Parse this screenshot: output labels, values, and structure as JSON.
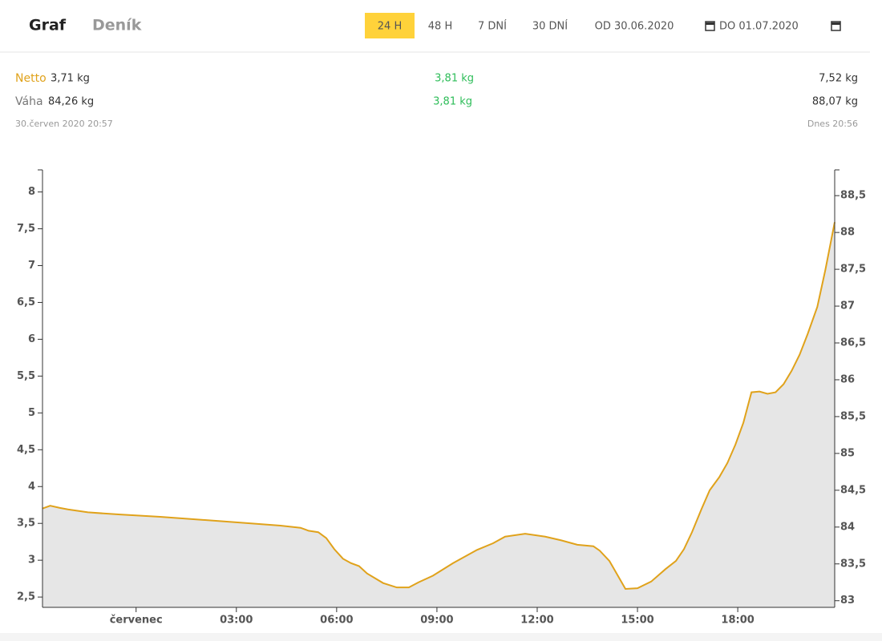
{
  "header": {
    "tabs": [
      "Graf",
      "Deník"
    ],
    "filters": [
      "24 H",
      "48 H",
      "7 DNÍ",
      "30 DNÍ",
      "OD 30.06.2020",
      "DO 01.07.2020"
    ]
  },
  "stats": {
    "rows": [
      {
        "label": "Netto",
        "start": "3,71 kg",
        "change": "3,81 kg",
        "end": "7,52 kg"
      },
      {
        "label": "Váha",
        "start": "84,26 kg",
        "change": "3,81 kg",
        "end": "88,07 kg"
      }
    ],
    "start_time": "30.červen 2020 20:57",
    "end_time": "Dnes 20:56"
  },
  "chart_data": {
    "type": "area",
    "x": [
      -2.81,
      -2.57,
      -2.28,
      -2.04,
      -1.44,
      -0.48,
      0.72,
      1.92,
      3.12,
      4.32,
      4.92,
      5.16,
      5.45,
      5.69,
      5.93,
      6.19,
      6.43,
      6.67,
      6.91,
      7.39,
      7.8,
      8.16,
      8.45,
      8.88,
      9.48,
      10.2,
      10.68,
      11.04,
      11.64,
      12.24,
      12.72,
      13.2,
      13.68,
      13.87,
      14.16,
      14.64,
      15.0,
      15.41,
      15.84,
      16.15,
      16.39,
      16.63,
      16.92,
      17.16,
      17.45,
      17.69,
      17.93,
      18.17,
      18.41,
      18.65,
      18.89,
      19.13,
      19.37,
      19.61,
      19.85,
      20.09,
      20.38,
      20.62,
      20.9
    ],
    "series": [
      {
        "color": "#e0a21b",
        "values": [
          3.7,
          3.74,
          3.71,
          3.69,
          3.65,
          3.62,
          3.59,
          3.55,
          3.51,
          3.47,
          3.44,
          3.4,
          3.38,
          3.3,
          3.15,
          3.02,
          2.96,
          2.92,
          2.82,
          2.69,
          2.63,
          2.63,
          2.7,
          2.79,
          2.96,
          3.14,
          3.23,
          3.32,
          3.36,
          3.32,
          3.27,
          3.21,
          3.19,
          3.13,
          2.99,
          2.61,
          2.62,
          2.71,
          2.88,
          2.99,
          3.15,
          3.38,
          3.7,
          3.95,
          4.13,
          4.32,
          4.57,
          4.87,
          5.28,
          5.29,
          5.26,
          5.28,
          5.39,
          5.57,
          5.79,
          6.07,
          6.44,
          6.94,
          7.59
        ]
      }
    ],
    "fill_color": "#e6e6e6",
    "xlim": [
      -2.8,
      20.9
    ],
    "xticks": [
      {
        "value": 0,
        "label": "červenec"
      },
      {
        "value": 3,
        "label": "03:00"
      },
      {
        "value": 6,
        "label": "06:00"
      },
      {
        "value": 9,
        "label": "09:00"
      },
      {
        "value": 12,
        "label": "12:00"
      },
      {
        "value": 15,
        "label": "15:00"
      },
      {
        "value": 18,
        "label": "18:00"
      }
    ],
    "ylim": [
      2.36,
      8.3
    ],
    "yticks": [
      {
        "value": 2.5,
        "label": "2,5"
      },
      3,
      {
        "value": 3.5,
        "label": "3,5"
      },
      4,
      {
        "value": 4.5,
        "label": "4,5"
      },
      5,
      {
        "value": 5.5,
        "label": "5,5"
      },
      6,
      {
        "value": 6.5,
        "label": "6,5"
      },
      7,
      {
        "value": 7.5,
        "label": "7,5"
      },
      8
    ],
    "y2lim": [
      82.91,
      88.85
    ],
    "y2ticks": [
      83,
      {
        "value": 83.5,
        "label": "83,5"
      },
      84,
      {
        "value": 84.5,
        "label": "84,5"
      },
      85,
      {
        "value": 85.5,
        "label": "85,5"
      },
      86,
      {
        "value": 86.5,
        "label": "86,5"
      },
      87,
      {
        "value": 87.5,
        "label": "87,5"
      },
      88,
      {
        "value": 88.5,
        "label": "88,5"
      }
    ]
  }
}
